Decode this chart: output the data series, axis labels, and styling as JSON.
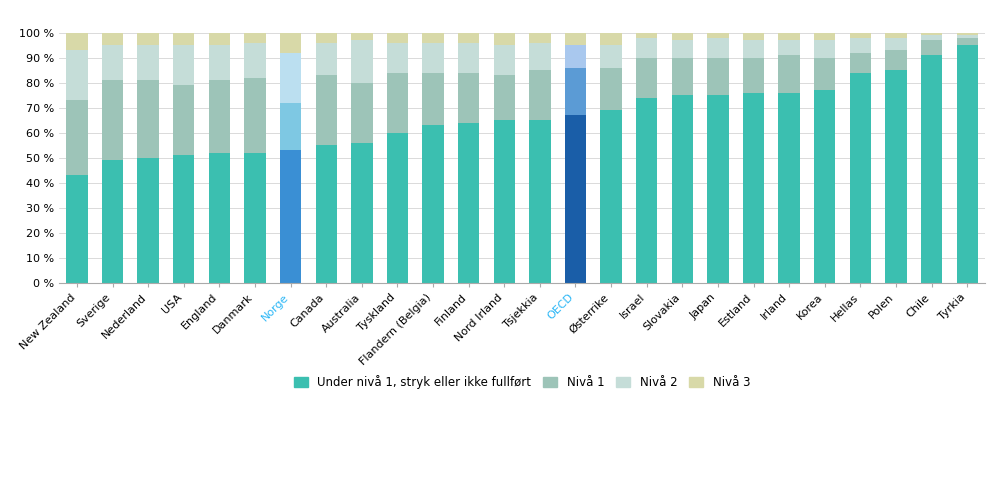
{
  "countries": [
    "New Zealand",
    "Sverige",
    "Nederland",
    "USA",
    "England",
    "Danmark",
    "Norge",
    "Canada",
    "Australia",
    "Tyskland",
    "Flandern (Belgia)",
    "Finland",
    "Nord Irland",
    "Tsjekkia",
    "OECD",
    "Østerrike",
    "Israel",
    "Slovakia",
    "Japan",
    "Estland",
    "Irland",
    "Korea",
    "Hellas",
    "Polen",
    "Chile",
    "Tyrkia"
  ],
  "nivel0_color": "#3BBFB0",
  "nivel1_color": "#9DC4B8",
  "nivel2_color": "#C5DDD8",
  "nivel3_color": "#D8D9A8",
  "norge_nivel0_color": "#3A8FD4",
  "norge_nivel1_color": "#7EC8E3",
  "norge_nivel2_color": "#BBDFF0",
  "norge_nivel3_color": "#D8D9A8",
  "oecd_nivel0_color": "#1A5EA8",
  "oecd_nivel1_color": "#5B9BD5",
  "oecd_nivel2_color": "#A9C8EE",
  "oecd_nivel3_color": "#D8D9A8",
  "nivel0": [
    43,
    49,
    50,
    51,
    52,
    52,
    53,
    55,
    56,
    60,
    63,
    64,
    65,
    65,
    67,
    69,
    74,
    75,
    75,
    76,
    76,
    77,
    84,
    85,
    91,
    95
  ],
  "nivel1": [
    30,
    32,
    31,
    28,
    29,
    30,
    19,
    28,
    24,
    24,
    21,
    20,
    18,
    20,
    19,
    17,
    16,
    15,
    15,
    14,
    15,
    13,
    8,
    8,
    6,
    3
  ],
  "nivel2": [
    20,
    14,
    14,
    16,
    14,
    14,
    20,
    13,
    17,
    12,
    12,
    12,
    12,
    11,
    9,
    9,
    8,
    7,
    8,
    7,
    6,
    7,
    6,
    5,
    2,
    1
  ],
  "nivel3": [
    7,
    5,
    5,
    5,
    5,
    4,
    8,
    4,
    3,
    4,
    4,
    4,
    5,
    4,
    5,
    5,
    2,
    3,
    2,
    3,
    3,
    3,
    2,
    2,
    1,
    1
  ],
  "legend_labels": [
    "Under nivå 1, stryk eller ikke fullført",
    "Nivå 1",
    "Nivå 2",
    "Nivå 3"
  ],
  "background_color": "#ffffff",
  "grid_color": "#cccccc",
  "bar_width": 0.6
}
